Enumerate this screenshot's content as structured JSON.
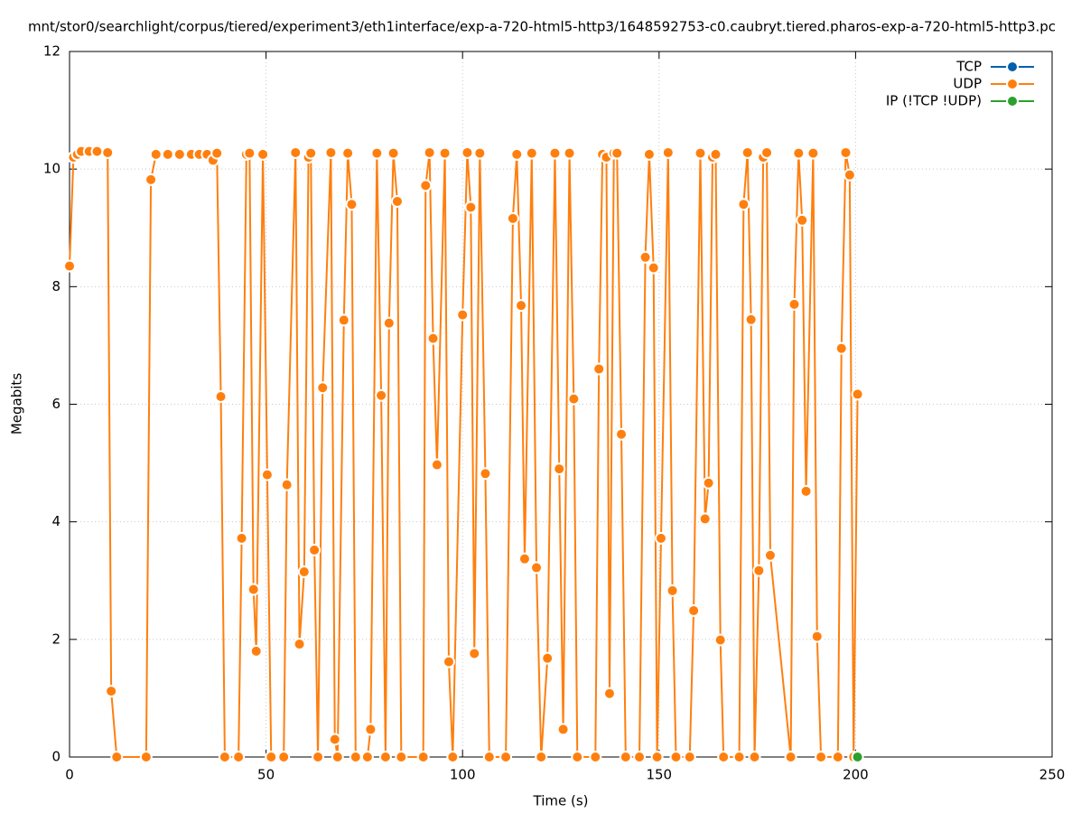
{
  "chart_data": {
    "type": "line",
    "title": "mnt/stor0/searchlight/corpus/tiered/experiment3/eth1interface/exp-a-720-html5-http3/1648592753-c0.caubryt.tiered.pharos-exp-a-720-html5-http3.pc",
    "x_label": "Time (s)",
    "y_label": "Megabits",
    "xlim": [
      0,
      250
    ],
    "xticks": [
      0,
      50,
      100,
      150,
      200,
      250
    ],
    "ylim": [
      0,
      12
    ],
    "yticks": [
      0,
      2,
      4,
      6,
      8,
      10,
      12
    ],
    "grid": true,
    "legend": "upper right",
    "series": [
      {
        "name": "TCP",
        "color": "#0060ad",
        "x": [],
        "values": []
      },
      {
        "name": "UDP",
        "color": "#ff7f0e",
        "x": [
          0,
          1,
          2,
          3,
          5,
          7,
          9.7,
          10.6,
          12,
          19.5,
          20.7,
          22,
          25,
          28,
          31,
          33,
          35,
          36.5,
          37.5,
          38.5,
          39.5,
          43,
          43.8,
          45,
          45.8,
          46.8,
          47.5,
          49.2,
          50.3,
          51.3,
          54.5,
          55.3,
          57.5,
          58.5,
          59.7,
          60.8,
          61.4,
          62.3,
          63.2,
          64.4,
          66.5,
          67.5,
          68.2,
          69.8,
          70.8,
          71.8,
          72.8,
          75.8,
          76.6,
          78.2,
          79.3,
          80.4,
          81.3,
          82.4,
          83.4,
          84.4,
          90,
          90.6,
          91.6,
          92.5,
          93.5,
          95.5,
          96.5,
          97.5,
          100,
          101.2,
          102.1,
          103,
          104.4,
          105.8,
          106.8,
          111,
          112.8,
          113.8,
          114.9,
          115.8,
          117.6,
          118.8,
          120,
          121.6,
          123.5,
          124.6,
          125.6,
          127.2,
          128.3,
          129.2,
          133.8,
          134.7,
          135.6,
          136.6,
          137.4,
          138.5,
          139.3,
          140.4,
          141.5,
          145,
          146.5,
          147.5,
          148.6,
          149.5,
          150.5,
          152.3,
          153.4,
          154.3,
          157.8,
          158.8,
          160.5,
          161.7,
          162.6,
          163.6,
          164.4,
          165.6,
          166.4,
          170.4,
          171.5,
          172.5,
          173.4,
          174.3,
          175.4,
          176.5,
          177.4,
          178.3,
          183.5,
          184.4,
          185.5,
          186.4,
          187.4,
          189.2,
          190.2,
          191.2,
          195.5,
          196.4,
          197.5,
          198.5,
          199.5,
          200.5
        ],
        "values": [
          8.35,
          10.2,
          10.25,
          10.3,
          10.3,
          10.3,
          10.28,
          1.12,
          0,
          0,
          9.82,
          10.25,
          10.25,
          10.25,
          10.25,
          10.25,
          10.25,
          10.15,
          10.27,
          6.13,
          0,
          0,
          3.72,
          10.25,
          10.27,
          2.85,
          1.8,
          10.25,
          4.8,
          0,
          0,
          4.63,
          10.28,
          1.92,
          3.15,
          10.2,
          10.27,
          3.52,
          0,
          6.28,
          10.28,
          0.3,
          0,
          7.43,
          10.27,
          9.4,
          0,
          0,
          0.47,
          10.27,
          6.15,
          0,
          7.38,
          10.27,
          9.45,
          0,
          0,
          9.72,
          10.28,
          7.12,
          4.97,
          10.27,
          1.62,
          0,
          7.52,
          10.28,
          9.35,
          1.76,
          10.27,
          4.82,
          0,
          0,
          9.16,
          10.25,
          7.68,
          3.37,
          10.27,
          3.22,
          0,
          1.68,
          10.27,
          4.9,
          0.47,
          10.27,
          6.09,
          0,
          0,
          6.6,
          10.25,
          10.2,
          1.08,
          10.27,
          10.27,
          5.49,
          0,
          0,
          8.5,
          10.25,
          8.32,
          0,
          3.72,
          10.28,
          2.83,
          0,
          0,
          2.49,
          10.27,
          4.05,
          4.66,
          10.2,
          10.25,
          1.99,
          0,
          0,
          9.4,
          10.28,
          7.44,
          0,
          3.17,
          10.2,
          10.28,
          3.43,
          0,
          7.7,
          10.27,
          9.13,
          4.52,
          10.27,
          2.05,
          0,
          0,
          6.95,
          10.28,
          9.9,
          0,
          6.17
        ]
      },
      {
        "name": "IP (!TCP  !UDP)",
        "color": "#2ca02c",
        "x": [
          200.5
        ],
        "values": [
          0
        ]
      }
    ]
  }
}
